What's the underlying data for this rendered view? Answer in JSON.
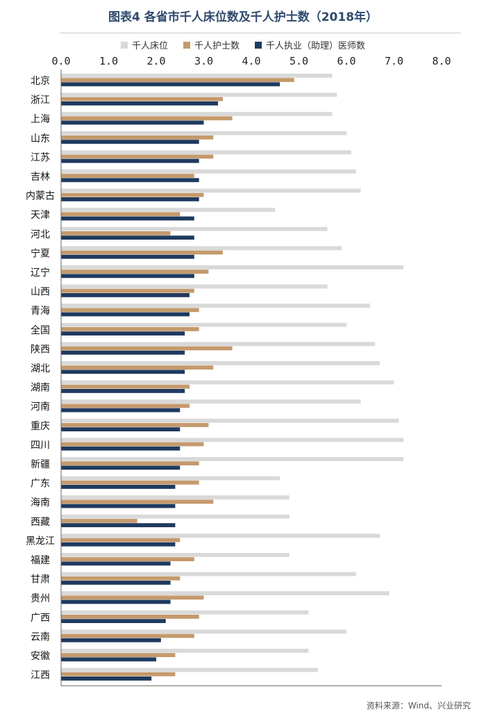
{
  "header": {
    "title": "图表4 各省市千人床位数及千人护士数（2018年）",
    "source": "资料来源：Wind、兴业研究"
  },
  "colors": {
    "beds": "#d9d9d9",
    "nurses": "#c49a6c",
    "doctors": "#1f3a5f",
    "title": "#2f4a6d"
  },
  "chart_data": {
    "type": "bar",
    "orientation": "horizontal",
    "title": "图表4 各省市千人床位数及千人护士数（2018年）",
    "xlim": [
      0,
      8
    ],
    "xticks": [
      "0.0",
      "1.0",
      "2.0",
      "3.0",
      "4.0",
      "5.0",
      "6.0",
      "7.0",
      "8.0"
    ],
    "legend_position": "top",
    "grid": false,
    "categories": [
      "北京",
      "浙江",
      "上海",
      "山东",
      "江苏",
      "吉林",
      "内蒙古",
      "天津",
      "河北",
      "宁夏",
      "辽宁",
      "山西",
      "青海",
      "全国",
      "陕西",
      "湖北",
      "湖南",
      "河南",
      "重庆",
      "四川",
      "新疆",
      "广东",
      "海南",
      "西藏",
      "黑龙江",
      "福建",
      "甘肃",
      "贵州",
      "广西",
      "云南",
      "安徽",
      "江西"
    ],
    "series": [
      {
        "name": "千人床位",
        "color": "#d9d9d9",
        "values": [
          5.7,
          5.8,
          5.7,
          6.0,
          6.1,
          6.2,
          6.3,
          4.5,
          5.6,
          5.9,
          7.2,
          5.6,
          6.5,
          6.0,
          6.6,
          6.7,
          7.0,
          6.3,
          7.1,
          7.2,
          7.2,
          4.6,
          4.8,
          4.8,
          6.7,
          4.8,
          6.2,
          6.9,
          5.2,
          6.0,
          5.2,
          5.4
        ]
      },
      {
        "name": "千人护士数",
        "color": "#c49a6c",
        "values": [
          4.9,
          3.4,
          3.6,
          3.2,
          3.2,
          2.8,
          3.0,
          2.5,
          2.3,
          3.4,
          3.1,
          2.8,
          2.9,
          2.9,
          3.6,
          3.2,
          2.7,
          2.7,
          3.1,
          3.0,
          2.9,
          2.9,
          3.2,
          1.6,
          2.5,
          2.8,
          2.5,
          3.0,
          2.9,
          2.8,
          2.4,
          2.4
        ]
      },
      {
        "name": "千人执业（助理）医师数",
        "color": "#1f3a5f",
        "values": [
          4.6,
          3.3,
          3.0,
          2.9,
          2.9,
          2.9,
          2.9,
          2.8,
          2.8,
          2.8,
          2.8,
          2.7,
          2.7,
          2.6,
          2.6,
          2.6,
          2.6,
          2.5,
          2.5,
          2.5,
          2.5,
          2.4,
          2.4,
          2.4,
          2.4,
          2.3,
          2.3,
          2.3,
          2.2,
          2.1,
          2.0,
          1.9
        ]
      }
    ]
  }
}
